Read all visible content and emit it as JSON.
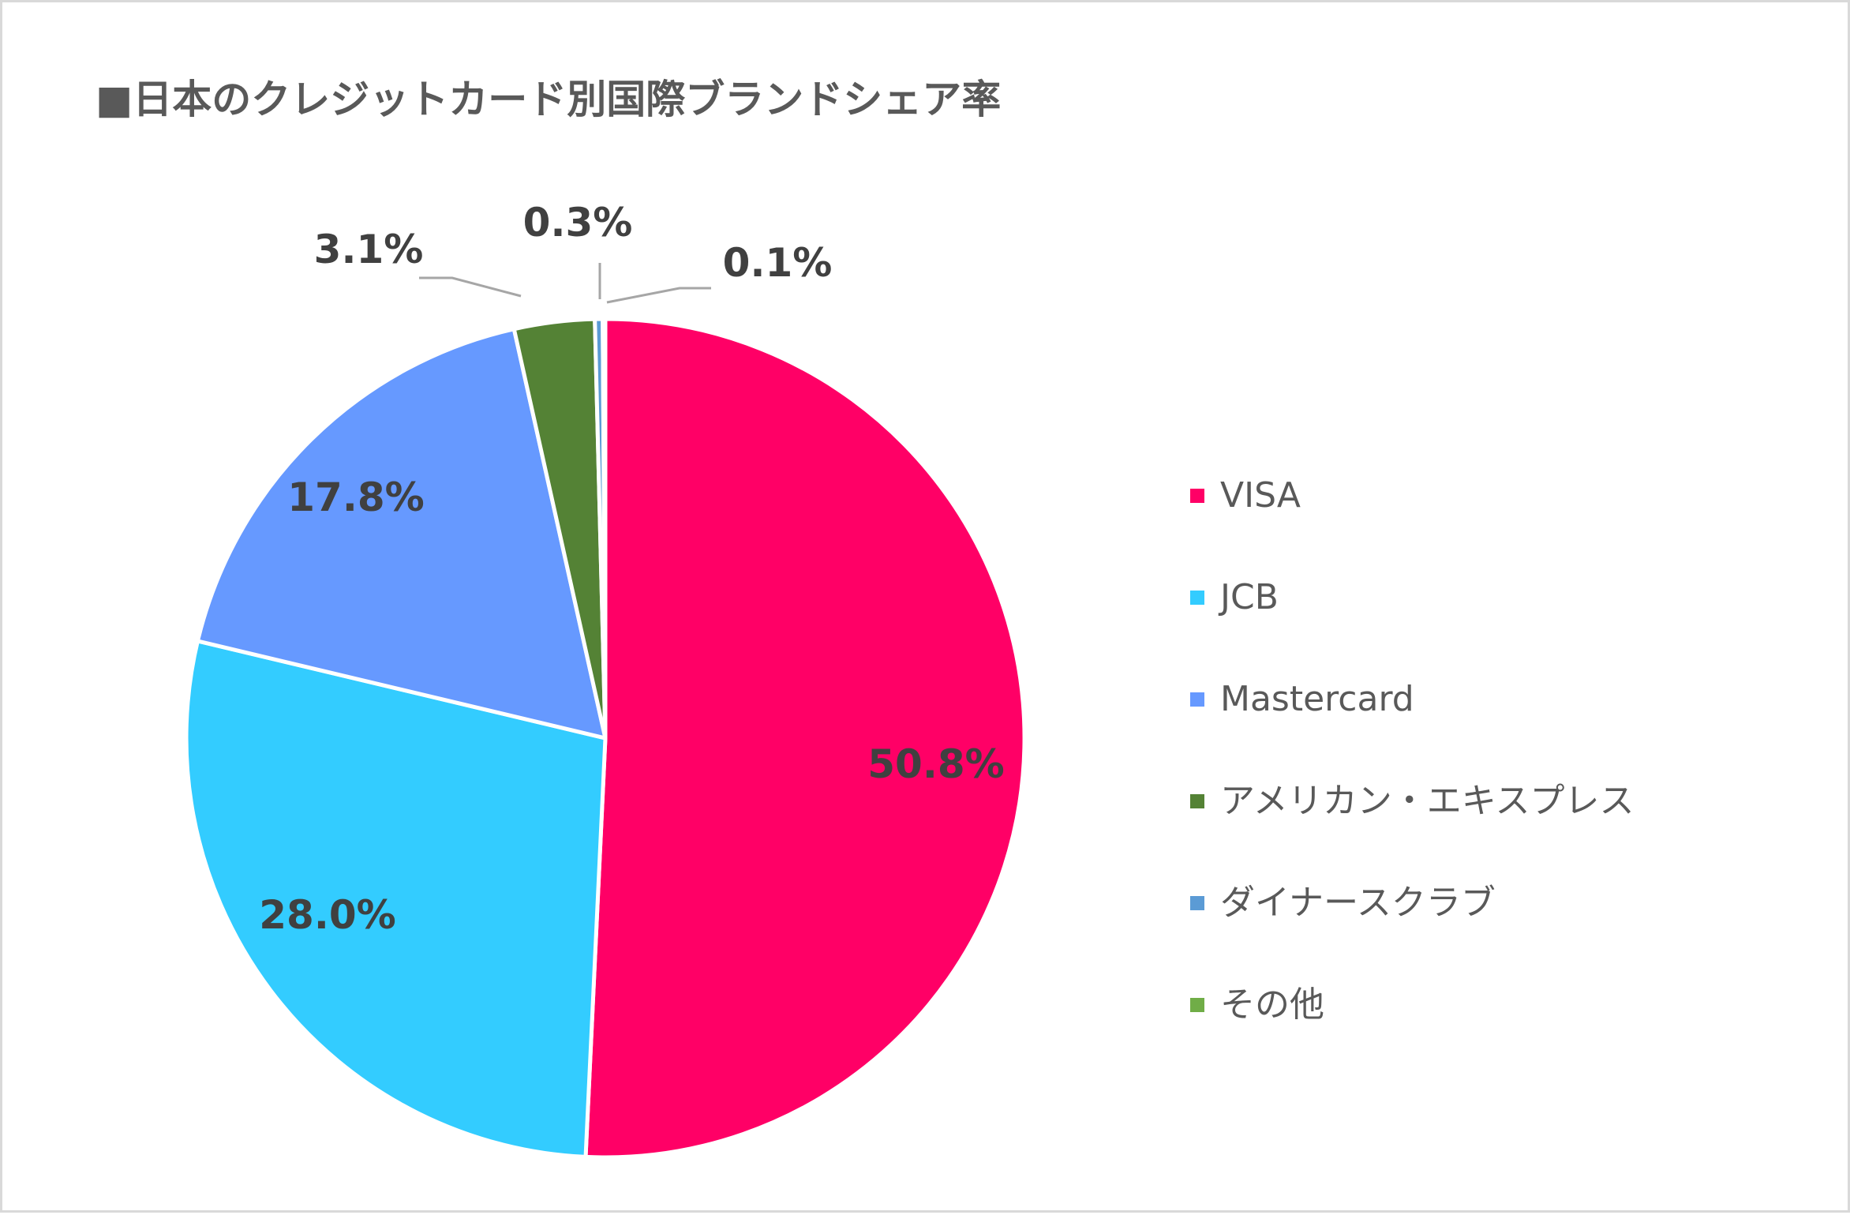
{
  "chart_data": {
    "type": "pie",
    "title": "■日本のクレジットカード別国際ブランドシェア率",
    "slices": [
      {
        "name": "VISA",
        "value": 50.8,
        "label": "50.8%",
        "color": "#ff0066"
      },
      {
        "name": "JCB",
        "value": 28.0,
        "label": "28.0%",
        "color": "#33ccff"
      },
      {
        "name": "Mastercard",
        "value": 17.8,
        "label": "17.8%",
        "color": "#6699ff"
      },
      {
        "name": "アメリカン・エキスプレス",
        "value": 3.1,
        "label": "3.1%",
        "color": "#548235"
      },
      {
        "name": "ダイナースクラブ",
        "value": 0.3,
        "label": "0.3%",
        "color": "#5b9bd5"
      },
      {
        "name": "その他",
        "value": 0.1,
        "label": "0.1%",
        "color": "#70ad47"
      }
    ],
    "legend_position": "right",
    "slice_border_color": "#ffffff"
  }
}
